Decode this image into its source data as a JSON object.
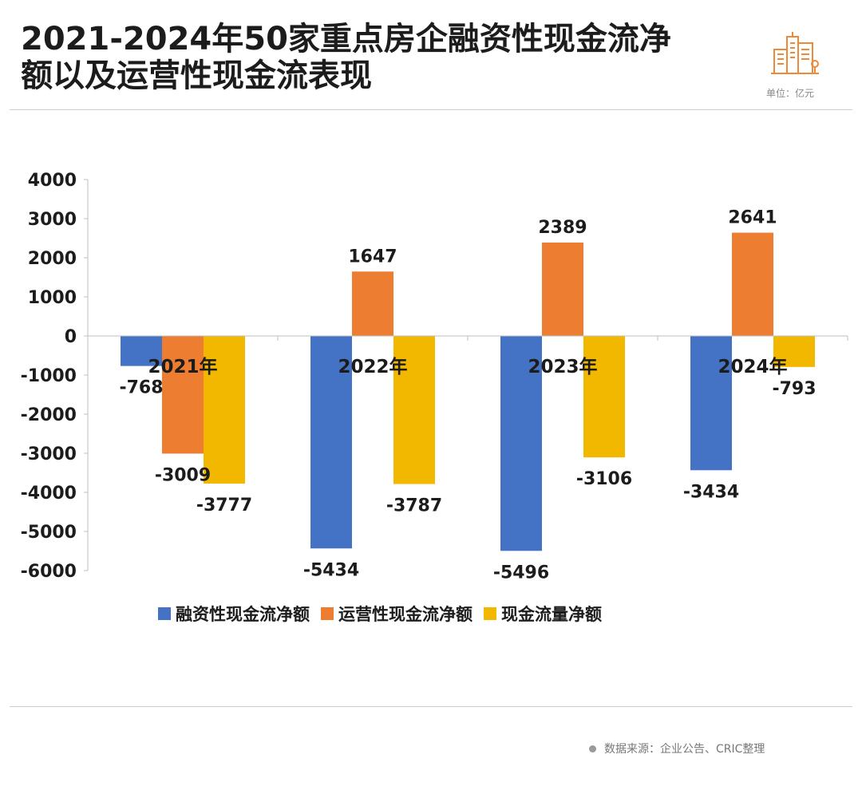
{
  "header": {
    "title_line1": "2021-2024年50家重点房企融资性现金流净",
    "title_line2": "额以及运营性现金流表现",
    "unit": "单位：亿元",
    "logo_icon": "city-buildings-icon"
  },
  "footer": {
    "source": "数据来源：企业公告、CRIC整理"
  },
  "chart_data": {
    "type": "bar",
    "title": "2021-2024年50家重点房企融资性现金流净额以及运营性现金流表现",
    "categories": [
      "2021年",
      "2022年",
      "2023年",
      "2024年"
    ],
    "series": [
      {
        "name": "融资性现金流净额",
        "values": [
          -768,
          -5434,
          -5496,
          -3434
        ],
        "color": "#4472C4"
      },
      {
        "name": "运营性现金流净额",
        "values": [
          -3009,
          1647,
          2389,
          2641
        ],
        "color": "#ED7D31"
      },
      {
        "name": "现金流量净额",
        "values": [
          -3777,
          -3787,
          -3106,
          -793
        ],
        "color": "#F2B800"
      }
    ],
    "ylim": [
      -6000,
      4000
    ],
    "yticks": [
      4000,
      3000,
      2000,
      1000,
      0,
      -1000,
      -2000,
      -3000,
      -4000,
      -5000,
      -6000
    ],
    "xlabel": "",
    "ylabel": "",
    "legend": "bottom",
    "grid": false
  }
}
